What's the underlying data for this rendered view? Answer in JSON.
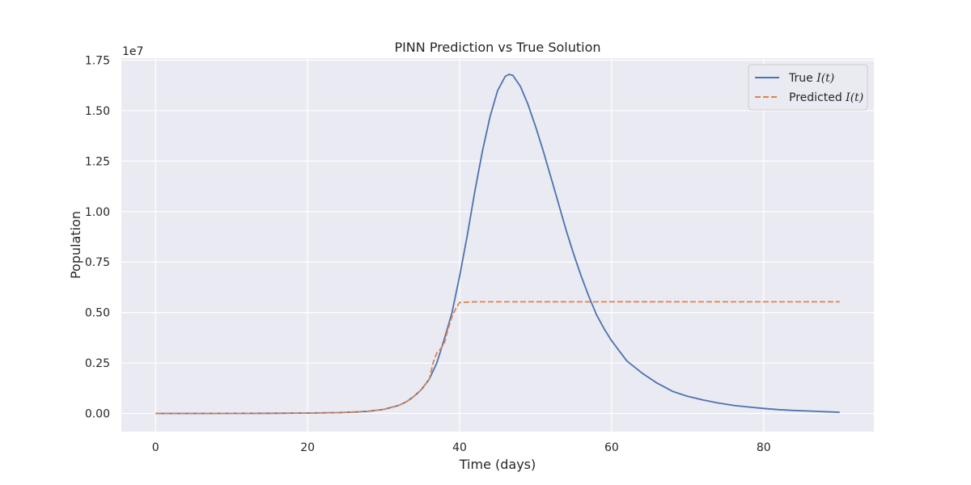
{
  "chart_data": {
    "type": "line",
    "title": "PINN Prediction vs True Solution",
    "xlabel": "Time (days)",
    "ylabel": "Population",
    "y_offset_label": "1e7",
    "xlim": [
      -4.5,
      94.5
    ],
    "ylim": [
      -0.09,
      1.76
    ],
    "xticks": [
      0,
      20,
      40,
      60,
      80
    ],
    "yticks": [
      0.0,
      0.25,
      0.5,
      0.75,
      1.0,
      1.25,
      1.5,
      1.75
    ],
    "ytick_labels": [
      "0.00",
      "0.25",
      "0.50",
      "0.75",
      "1.00",
      "1.25",
      "1.50",
      "1.75"
    ],
    "grid": true,
    "legend_position": "upper right",
    "series": [
      {
        "name": "True I(t)",
        "legend_prefix": "True ",
        "legend_math": "I(t)",
        "color": "#4c72b0",
        "style": "solid",
        "x": [
          0,
          5,
          10,
          15,
          20,
          24,
          26,
          28,
          30,
          32,
          33,
          34,
          35,
          36,
          37,
          38,
          39,
          40,
          41,
          42,
          43,
          44,
          45,
          46,
          46.5,
          47,
          48,
          49,
          50,
          51,
          52,
          53,
          54,
          55,
          56,
          57,
          58,
          59,
          60,
          62,
          64,
          66,
          68,
          70,
          72,
          74,
          76,
          78,
          80,
          82,
          84,
          86,
          88,
          90
        ],
        "y": [
          0.0,
          0.0,
          0.0005,
          0.001,
          0.002,
          0.004,
          0.007,
          0.011,
          0.02,
          0.04,
          0.058,
          0.085,
          0.12,
          0.17,
          0.25,
          0.37,
          0.5,
          0.68,
          0.88,
          1.1,
          1.3,
          1.47,
          1.6,
          1.67,
          1.68,
          1.675,
          1.62,
          1.53,
          1.42,
          1.3,
          1.17,
          1.04,
          0.91,
          0.79,
          0.68,
          0.58,
          0.49,
          0.42,
          0.36,
          0.26,
          0.2,
          0.15,
          0.11,
          0.085,
          0.067,
          0.052,
          0.04,
          0.032,
          0.025,
          0.019,
          0.015,
          0.012,
          0.009,
          0.006
        ]
      },
      {
        "name": "Predicted I(t)",
        "legend_prefix": "Predicted ",
        "legend_math": "I(t)",
        "color": "#dd8452",
        "style": "dashed",
        "x": [
          0,
          5,
          10,
          15,
          20,
          24,
          26,
          28,
          30,
          32,
          33,
          34,
          35,
          36,
          36.5,
          37,
          37.5,
          38,
          38.5,
          39,
          39.5,
          40,
          42,
          50,
          60,
          70,
          80,
          90
        ],
        "y": [
          0.0,
          0.0,
          0.0005,
          0.001,
          0.002,
          0.004,
          0.007,
          0.011,
          0.02,
          0.04,
          0.058,
          0.085,
          0.12,
          0.17,
          0.25,
          0.3,
          0.32,
          0.35,
          0.42,
          0.48,
          0.52,
          0.55,
          0.553,
          0.553,
          0.553,
          0.553,
          0.553,
          0.553
        ]
      }
    ]
  }
}
